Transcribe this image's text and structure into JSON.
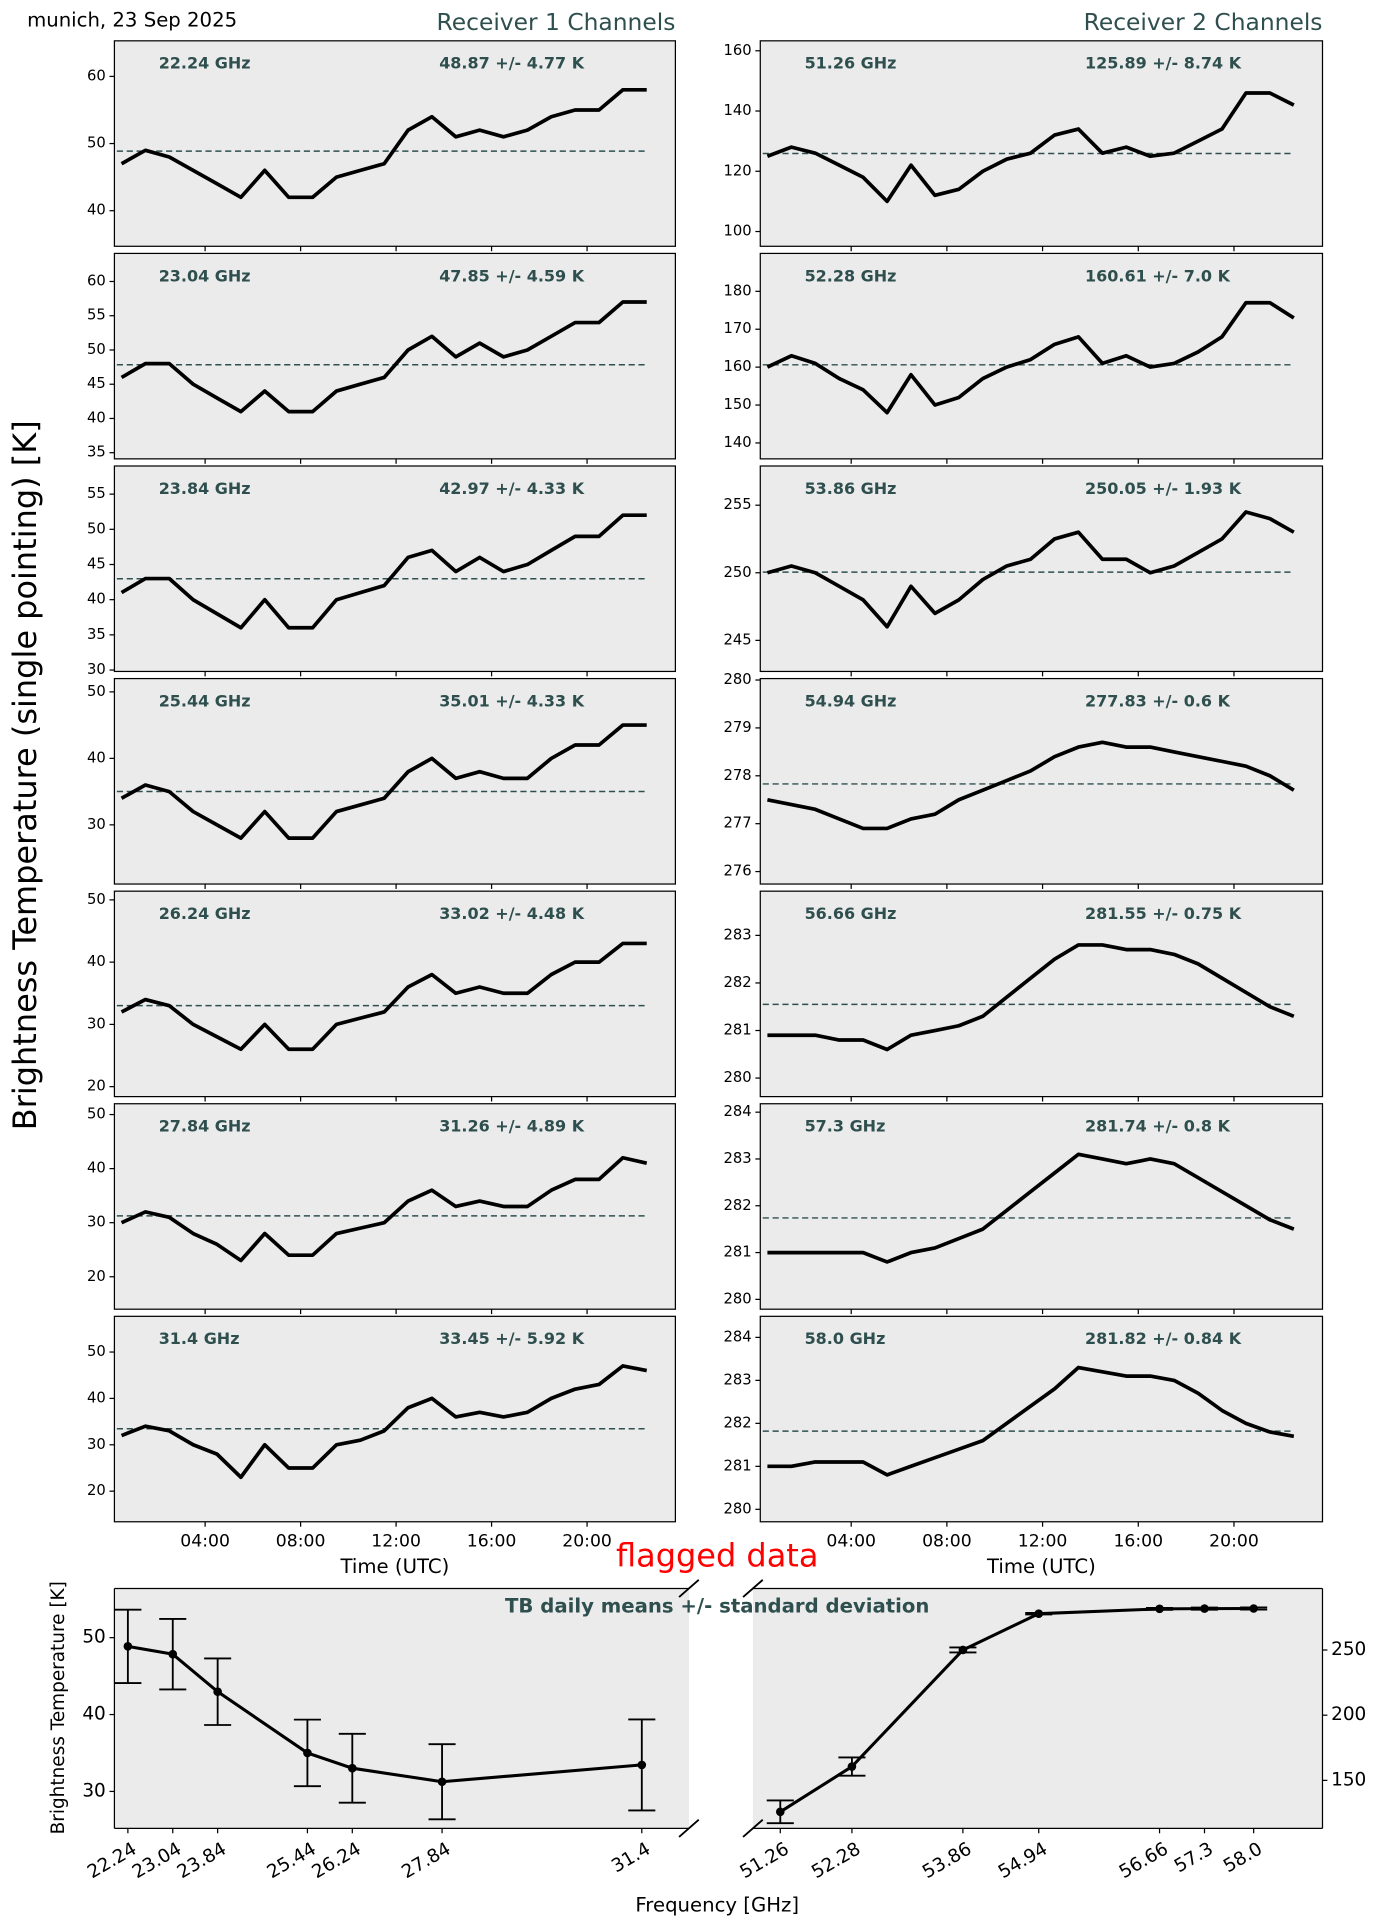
{
  "page": {
    "title": "munich, 23 Sep 2025",
    "ylabel": "Brightness Temperature (single pointing) [K]",
    "column_titles": [
      "Receiver 1 Channels",
      "Receiver 2 Channels"
    ]
  },
  "chart_data": [
    {
      "type": "line",
      "freq_label": "22.24 GHz",
      "stats_label": "48.87 +/- 4.77 K",
      "mean": 48.87,
      "color": "#000000",
      "mean_color": "#2f4f4f",
      "x": [
        "00:30",
        "01:30",
        "02:30",
        "03:30",
        "04:30",
        "05:30",
        "06:30",
        "07:30",
        "08:30",
        "09:30",
        "10:30",
        "11:30",
        "12:30",
        "13:30",
        "14:30",
        "15:30",
        "16:30",
        "17:30",
        "18:30",
        "19:30",
        "20:30",
        "21:30",
        "22:30"
      ],
      "values": [
        47,
        49,
        48,
        46,
        44,
        42,
        46,
        42,
        42,
        45,
        46,
        47,
        52,
        54,
        51,
        52,
        51,
        52,
        54,
        55,
        55,
        58,
        58
      ],
      "xlim": [
        "00:12",
        "23:42"
      ],
      "ylim": [
        34.7,
        65.3
      ],
      "yticks": [
        40,
        50,
        60
      ]
    },
    {
      "type": "line",
      "freq_label": "23.04 GHz",
      "stats_label": "47.85 +/- 4.59 K",
      "mean": 47.85,
      "color": "#000000",
      "mean_color": "#2f4f4f",
      "x": [
        "00:30",
        "01:30",
        "02:30",
        "03:30",
        "04:30",
        "05:30",
        "06:30",
        "07:30",
        "08:30",
        "09:30",
        "10:30",
        "11:30",
        "12:30",
        "13:30",
        "14:30",
        "15:30",
        "16:30",
        "17:30",
        "18:30",
        "19:30",
        "20:30",
        "21:30",
        "22:30"
      ],
      "values": [
        46,
        48,
        48,
        45,
        43,
        41,
        44,
        41,
        41,
        44,
        45,
        46,
        50,
        52,
        49,
        51,
        49,
        50,
        52,
        54,
        54,
        57,
        57
      ],
      "xlim": [
        "00:12",
        "23:42"
      ],
      "ylim": [
        34.1,
        64.1
      ],
      "yticks": [
        35,
        40,
        45,
        50,
        55,
        60
      ]
    },
    {
      "type": "line",
      "freq_label": "23.84 GHz",
      "stats_label": "42.97 +/- 4.33 K",
      "mean": 42.97,
      "color": "#000000",
      "mean_color": "#2f4f4f",
      "x": [
        "00:30",
        "01:30",
        "02:30",
        "03:30",
        "04:30",
        "05:30",
        "06:30",
        "07:30",
        "08:30",
        "09:30",
        "10:30",
        "11:30",
        "12:30",
        "13:30",
        "14:30",
        "15:30",
        "16:30",
        "17:30",
        "18:30",
        "19:30",
        "20:30",
        "21:30",
        "22:30"
      ],
      "values": [
        41,
        43,
        43,
        40,
        38,
        36,
        40,
        36,
        36,
        40,
        41,
        42,
        46,
        47,
        44,
        46,
        44,
        45,
        47,
        49,
        49,
        52,
        52
      ],
      "xlim": [
        "00:12",
        "23:42"
      ],
      "ylim": [
        29.8,
        59
      ],
      "yticks": [
        30,
        35,
        40,
        45,
        50,
        55
      ]
    },
    {
      "type": "line",
      "freq_label": "25.44 GHz",
      "stats_label": "35.01 +/- 4.33 K",
      "mean": 35.01,
      "color": "#000000",
      "mean_color": "#2f4f4f",
      "x": [
        "00:30",
        "01:30",
        "02:30",
        "03:30",
        "04:30",
        "05:30",
        "06:30",
        "07:30",
        "08:30",
        "09:30",
        "10:30",
        "11:30",
        "12:30",
        "13:30",
        "14:30",
        "15:30",
        "16:30",
        "17:30",
        "18:30",
        "19:30",
        "20:30",
        "21:30",
        "22:30"
      ],
      "values": [
        34,
        36,
        35,
        32,
        30,
        28,
        32,
        28,
        28,
        32,
        33,
        34,
        38,
        40,
        37,
        38,
        37,
        37,
        40,
        42,
        42,
        45,
        45
      ],
      "xlim": [
        "00:12",
        "23:42"
      ],
      "ylim": [
        21.1,
        52
      ],
      "yticks": [
        30,
        40,
        50
      ]
    },
    {
      "type": "line",
      "freq_label": "26.24 GHz",
      "stats_label": "33.02 +/- 4.48 K",
      "mean": 33.02,
      "color": "#000000",
      "mean_color": "#2f4f4f",
      "x": [
        "00:30",
        "01:30",
        "02:30",
        "03:30",
        "04:30",
        "05:30",
        "06:30",
        "07:30",
        "08:30",
        "09:30",
        "10:30",
        "11:30",
        "12:30",
        "13:30",
        "14:30",
        "15:30",
        "16:30",
        "17:30",
        "18:30",
        "19:30",
        "20:30",
        "21:30",
        "22:30"
      ],
      "values": [
        32,
        34,
        33,
        30,
        28,
        26,
        30,
        26,
        26,
        30,
        31,
        32,
        36,
        38,
        35,
        36,
        35,
        35,
        38,
        40,
        40,
        43,
        43
      ],
      "xlim": [
        "00:12",
        "23:42"
      ],
      "ylim": [
        18.4,
        51.4
      ],
      "yticks": [
        20,
        30,
        40,
        50
      ]
    },
    {
      "type": "line",
      "freq_label": "27.84 GHz",
      "stats_label": "31.26 +/- 4.89 K",
      "mean": 31.26,
      "color": "#000000",
      "mean_color": "#2f4f4f",
      "x": [
        "00:30",
        "01:30",
        "02:30",
        "03:30",
        "04:30",
        "05:30",
        "06:30",
        "07:30",
        "08:30",
        "09:30",
        "10:30",
        "11:30",
        "12:30",
        "13:30",
        "14:30",
        "15:30",
        "16:30",
        "17:30",
        "18:30",
        "19:30",
        "20:30",
        "21:30",
        "22:30"
      ],
      "values": [
        30,
        32,
        31,
        28,
        26,
        23,
        28,
        24,
        24,
        28,
        29,
        30,
        34,
        36,
        33,
        34,
        33,
        33,
        36,
        38,
        38,
        42,
        41
      ],
      "xlim": [
        "00:12",
        "23:42"
      ],
      "ylim": [
        14,
        52
      ],
      "yticks": [
        20,
        30,
        40,
        50
      ]
    },
    {
      "type": "line",
      "freq_label": "31.4 GHz",
      "stats_label": "33.45 +/- 5.92 K",
      "mean": 33.45,
      "color": "#000000",
      "mean_color": "#2f4f4f",
      "x": [
        "00:30",
        "01:30",
        "02:30",
        "03:30",
        "04:30",
        "05:30",
        "06:30",
        "07:30",
        "08:30",
        "09:30",
        "10:30",
        "11:30",
        "12:30",
        "13:30",
        "14:30",
        "15:30",
        "16:30",
        "17:30",
        "18:30",
        "19:30",
        "20:30",
        "21:30",
        "22:30"
      ],
      "values": [
        32,
        34,
        33,
        30,
        28,
        23,
        30,
        25,
        25,
        30,
        31,
        33,
        38,
        40,
        36,
        37,
        36,
        37,
        40,
        42,
        43,
        47,
        46
      ],
      "xlim": [
        "00:12",
        "23:42"
      ],
      "ylim": [
        13.4,
        57.7
      ],
      "yticks": [
        20,
        30,
        40,
        50
      ],
      "xticks": [
        "04:00",
        "08:00",
        "12:00",
        "16:00",
        "20:00"
      ],
      "xlabel": "Time (UTC)"
    },
    {
      "type": "line",
      "freq_label": "51.26 GHz",
      "stats_label": "125.89 +/- 8.74 K",
      "mean": 125.89,
      "color": "#000000",
      "mean_color": "#2f4f4f",
      "x": [
        "00:30",
        "01:30",
        "02:30",
        "03:30",
        "04:30",
        "05:30",
        "06:30",
        "07:30",
        "08:30",
        "09:30",
        "10:30",
        "11:30",
        "12:30",
        "13:30",
        "14:30",
        "15:30",
        "16:30",
        "17:30",
        "18:30",
        "19:30",
        "20:30",
        "21:30",
        "22:30"
      ],
      "values": [
        125,
        128,
        126,
        122,
        118,
        110,
        122,
        112,
        114,
        120,
        124,
        126,
        132,
        134,
        126,
        128,
        125,
        126,
        130,
        134,
        146,
        146,
        142
      ],
      "xlim": [
        "00:12",
        "23:42"
      ],
      "ylim": [
        95.1,
        163.3
      ],
      "yticks": [
        100,
        120,
        140,
        160
      ]
    },
    {
      "type": "line",
      "freq_label": "52.28 GHz",
      "stats_label": "160.61 +/- 7.0 K",
      "mean": 160.61,
      "color": "#000000",
      "mean_color": "#2f4f4f",
      "x": [
        "00:30",
        "01:30",
        "02:30",
        "03:30",
        "04:30",
        "05:30",
        "06:30",
        "07:30",
        "08:30",
        "09:30",
        "10:30",
        "11:30",
        "12:30",
        "13:30",
        "14:30",
        "15:30",
        "16:30",
        "17:30",
        "18:30",
        "19:30",
        "20:30",
        "21:30",
        "22:30"
      ],
      "values": [
        160,
        163,
        161,
        157,
        154,
        148,
        158,
        150,
        152,
        157,
        160,
        162,
        166,
        168,
        161,
        163,
        160,
        161,
        164,
        168,
        177,
        177,
        173
      ],
      "xlim": [
        "00:12",
        "23:42"
      ],
      "ylim": [
        135.8,
        190
      ],
      "yticks": [
        140,
        150,
        160,
        170,
        180
      ]
    },
    {
      "type": "line",
      "freq_label": "53.86 GHz",
      "stats_label": "250.05 +/- 1.93 K",
      "mean": 250.05,
      "color": "#000000",
      "mean_color": "#2f4f4f",
      "x": [
        "00:30",
        "01:30",
        "02:30",
        "03:30",
        "04:30",
        "05:30",
        "06:30",
        "07:30",
        "08:30",
        "09:30",
        "10:30",
        "11:30",
        "12:30",
        "13:30",
        "14:30",
        "15:30",
        "16:30",
        "17:30",
        "18:30",
        "19:30",
        "20:30",
        "21:30",
        "22:30"
      ],
      "values": [
        250,
        250.5,
        250,
        249,
        248,
        246,
        249,
        247,
        248,
        249.5,
        250.5,
        251,
        252.5,
        253,
        251,
        251,
        250,
        250.5,
        251.5,
        252.5,
        254.5,
        254,
        253
      ],
      "xlim": [
        "00:12",
        "23:42"
      ],
      "ylim": [
        242.7,
        257.9
      ],
      "yticks": [
        245,
        250,
        255
      ]
    },
    {
      "type": "line",
      "freq_label": "54.94 GHz",
      "stats_label": "277.83 +/- 0.6 K",
      "mean": 277.83,
      "color": "#000000",
      "mean_color": "#2f4f4f",
      "x": [
        "00:30",
        "01:30",
        "02:30",
        "03:30",
        "04:30",
        "05:30",
        "06:30",
        "07:30",
        "08:30",
        "09:30",
        "10:30",
        "11:30",
        "12:30",
        "13:30",
        "14:30",
        "15:30",
        "16:30",
        "17:30",
        "18:30",
        "19:30",
        "20:30",
        "21:30",
        "22:30"
      ],
      "values": [
        277.5,
        277.4,
        277.3,
        277.1,
        276.9,
        276.9,
        277.1,
        277.2,
        277.5,
        277.7,
        277.9,
        278.1,
        278.4,
        278.6,
        278.7,
        278.6,
        278.6,
        278.5,
        278.4,
        278.3,
        278.2,
        278,
        277.7
      ],
      "xlim": [
        "00:12",
        "23:42"
      ],
      "ylim": [
        275.74,
        280.03
      ],
      "yticks": [
        276,
        277,
        278,
        279,
        280
      ]
    },
    {
      "type": "line",
      "freq_label": "56.66 GHz",
      "stats_label": "281.55 +/- 0.75 K",
      "mean": 281.55,
      "color": "#000000",
      "mean_color": "#2f4f4f",
      "x": [
        "00:30",
        "01:30",
        "02:30",
        "03:30",
        "04:30",
        "05:30",
        "06:30",
        "07:30",
        "08:30",
        "09:30",
        "10:30",
        "11:30",
        "12:30",
        "13:30",
        "14:30",
        "15:30",
        "16:30",
        "17:30",
        "18:30",
        "19:30",
        "20:30",
        "21:30",
        "22:30"
      ],
      "values": [
        280.9,
        280.9,
        280.9,
        280.8,
        280.8,
        280.6,
        280.9,
        281,
        281.1,
        281.3,
        281.7,
        282.1,
        282.5,
        282.8,
        282.8,
        282.7,
        282.7,
        282.6,
        282.4,
        282.1,
        281.8,
        281.5,
        281.3
      ],
      "xlim": [
        "00:12",
        "23:42"
      ],
      "ylim": [
        279.61,
        283.93
      ],
      "yticks": [
        280,
        281,
        282,
        283
      ]
    },
    {
      "type": "line",
      "freq_label": "57.3 GHz",
      "stats_label": "281.74 +/- 0.8 K",
      "mean": 281.74,
      "color": "#000000",
      "mean_color": "#2f4f4f",
      "x": [
        "00:30",
        "01:30",
        "02:30",
        "03:30",
        "04:30",
        "05:30",
        "06:30",
        "07:30",
        "08:30",
        "09:30",
        "10:30",
        "11:30",
        "12:30",
        "13:30",
        "14:30",
        "15:30",
        "16:30",
        "17:30",
        "18:30",
        "19:30",
        "20:30",
        "21:30",
        "22:30"
      ],
      "values": [
        281,
        281,
        281,
        281,
        281,
        280.8,
        281,
        281.1,
        281.3,
        281.5,
        281.9,
        282.3,
        282.7,
        283.1,
        283,
        282.9,
        283,
        282.9,
        282.6,
        282.3,
        282,
        281.7,
        281.5
      ],
      "xlim": [
        "00:12",
        "23:42"
      ],
      "ylim": [
        279.79,
        284.18
      ],
      "yticks": [
        280,
        281,
        282,
        283,
        284
      ]
    },
    {
      "type": "line",
      "freq_label": "58.0 GHz",
      "stats_label": "281.82 +/- 0.84 K",
      "mean": 281.82,
      "color": "#000000",
      "mean_color": "#2f4f4f",
      "x": [
        "00:30",
        "01:30",
        "02:30",
        "03:30",
        "04:30",
        "05:30",
        "06:30",
        "07:30",
        "08:30",
        "09:30",
        "10:30",
        "11:30",
        "12:30",
        "13:30",
        "14:30",
        "15:30",
        "16:30",
        "17:30",
        "18:30",
        "19:30",
        "20:30",
        "21:30",
        "22:30"
      ],
      "values": [
        281,
        281,
        281.1,
        281.1,
        281.1,
        280.8,
        281,
        281.2,
        281.4,
        281.6,
        282,
        282.4,
        282.8,
        283.3,
        283.2,
        283.1,
        283.1,
        283,
        282.7,
        282.3,
        282,
        281.8,
        281.7
      ],
      "xlim": [
        "00:12",
        "23:42"
      ],
      "ylim": [
        279.71,
        284.49
      ],
      "yticks": [
        280,
        281,
        282,
        283,
        284
      ],
      "xticks": [
        "04:00",
        "08:00",
        "12:00",
        "16:00",
        "20:00"
      ],
      "xlabel": "Time (UTC)"
    },
    {
      "type": "errorbar",
      "title": "TB daily means +/- standard deviation",
      "ylabel": "Brightness Temperature [K]",
      "xlabel": "Frequency [GHz]",
      "annotation": "flagged data",
      "annotation_color": "#ff0000",
      "title_color": "#2f4f4f",
      "xlim": [
        22.0,
        32.24
      ],
      "x2lim": [
        50.87,
        58.98
      ],
      "ylim": [
        25.2,
        56.4
      ],
      "yticks": [
        30,
        40,
        50
      ],
      "y2lim": [
        113.2,
        297.2
      ],
      "y2ticks": [
        150,
        200,
        250
      ],
      "xticks": [
        22.24,
        23.04,
        23.84,
        25.44,
        26.24,
        27.84,
        31.4,
        51.26,
        52.28,
        53.86,
        54.94,
        56.66,
        57.3,
        {
          "value": 58,
          "label": "58.0"
        }
      ],
      "series": [
        {
          "color": "#000000",
          "x": [
            22.24,
            23.04,
            23.84,
            25.44,
            26.24,
            27.84,
            31.4
          ],
          "values": [
            48.87,
            47.85,
            42.97,
            35.01,
            33.02,
            31.26,
            33.45
          ],
          "errors": [
            4.77,
            4.59,
            4.33,
            4.33,
            4.48,
            4.89,
            5.92
          ]
        },
        {
          "color": "#000000",
          "axis": "y2",
          "x": [
            51.26,
            52.28,
            53.86,
            54.94,
            56.66,
            57.3,
            58
          ],
          "values": [
            125.89,
            160.61,
            250.05,
            277.83,
            281.55,
            281.74,
            281.82
          ],
          "errors": [
            8.74,
            7,
            1.93,
            0.6,
            0.75,
            0.8,
            0.84
          ]
        }
      ]
    }
  ]
}
